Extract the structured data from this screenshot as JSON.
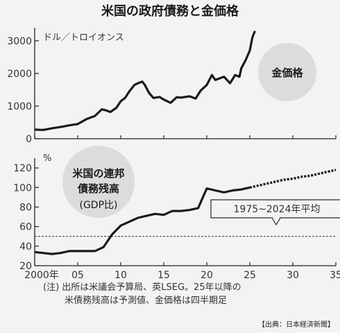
{
  "chart_data": [
    {
      "type": "line",
      "title": "米国の政府債務と金価格",
      "unit_label": "ドル／トロイオンス",
      "annotation": "金価格",
      "x_ticks": [
        "2000年",
        "05",
        "10",
        "15",
        "20",
        "25",
        "30",
        "35"
      ],
      "xlim": [
        2000,
        2035
      ],
      "y_ticks": [
        "0",
        "1000",
        "2000",
        "3000"
      ],
      "ylim": [
        0,
        3400
      ],
      "series": [
        {
          "x": [
            2000,
            2001,
            2002,
            2003,
            2004,
            2005,
            2006,
            2007,
            2007.8,
            2008.3,
            2008.8,
            2009.5,
            2010,
            2010.5,
            2011,
            2011.6,
            2012,
            2012.5,
            2012.8,
            2013.3,
            2013.8,
            2014.5,
            2015,
            2015.8,
            2016.5,
            2017,
            2018,
            2018.7,
            2019.3,
            2020,
            2020.6,
            2021,
            2021.5,
            2022,
            2022.7,
            2023.3,
            2023.8,
            2024,
            2024.5,
            2025,
            2025.3,
            2025.6
          ],
          "y": [
            280,
            270,
            320,
            360,
            410,
            450,
            600,
            700,
            900,
            870,
            820,
            950,
            1150,
            1250,
            1450,
            1650,
            1700,
            1750,
            1650,
            1400,
            1250,
            1280,
            1200,
            1100,
            1270,
            1260,
            1300,
            1230,
            1480,
            1650,
            1950,
            1800,
            1850,
            1900,
            1700,
            1950,
            1900,
            2150,
            2400,
            2700,
            3100,
            3300
          ]
        }
      ]
    },
    {
      "type": "line",
      "unit_label": "%",
      "annotation": [
        "米国の連邦",
        "債務残高",
        "(GDP比)"
      ],
      "x_ticks": [
        "2000年",
        "05",
        "10",
        "15",
        "20",
        "25",
        "30",
        "35"
      ],
      "xlim": [
        2000,
        2035
      ],
      "y_ticks": [
        "20",
        "40",
        "60",
        "80",
        "100",
        "120"
      ],
      "ylim": [
        20,
        130
      ],
      "reference_line": {
        "label": "1975~2024年平均",
        "value": 50
      },
      "series": [
        {
          "x": [
            2000,
            2001,
            2002,
            2003,
            2004,
            2005,
            2006,
            2007,
            2008,
            2009,
            2010,
            2011,
            2012,
            2013,
            2014,
            2015,
            2016,
            2017,
            2018,
            2019,
            2020,
            2021,
            2022,
            2023,
            2024,
            2025
          ],
          "y": [
            34,
            33,
            32,
            33,
            35,
            35,
            35,
            35,
            39,
            52,
            61,
            65,
            69,
            71,
            73,
            72,
            76,
            76,
            77,
            79,
            99,
            97,
            95,
            97,
            98,
            100
          ]
        },
        {
          "x": [
            2025,
            2026,
            2027,
            2028,
            2029,
            2030,
            2031,
            2032,
            2033,
            2034,
            2035
          ],
          "y": [
            100,
            102,
            104,
            106,
            108,
            109,
            111,
            112,
            114,
            116,
            118
          ]
        }
      ]
    }
  ],
  "notes": [
    "(注) 出所は米議会予算局、英LSEG。25年以降の",
    "米債務残高は予測値、金価格は四半期足"
  ],
  "source": "【出典：日本経済新聞】"
}
